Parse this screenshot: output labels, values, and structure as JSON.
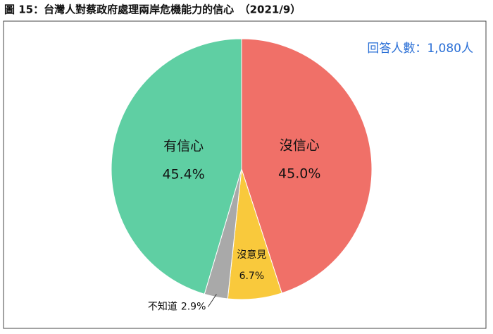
{
  "chart_data": {
    "type": "pie",
    "title": "圖 15：台灣人對蔡政府處理兩岸危機能力的信心　（2021/9）",
    "annotation": "回答人數：1,080人",
    "categories": [
      "沒信心",
      "沒意見",
      "不知道",
      "有信心"
    ],
    "values": [
      45.0,
      6.7,
      2.9,
      45.4
    ],
    "value_labels": [
      "45.0%",
      "6.7%",
      "2.9%",
      "45.4%"
    ],
    "colors": [
      "#f07068",
      "#f9c93c",
      "#a9a9a9",
      "#5fcfa3"
    ]
  }
}
